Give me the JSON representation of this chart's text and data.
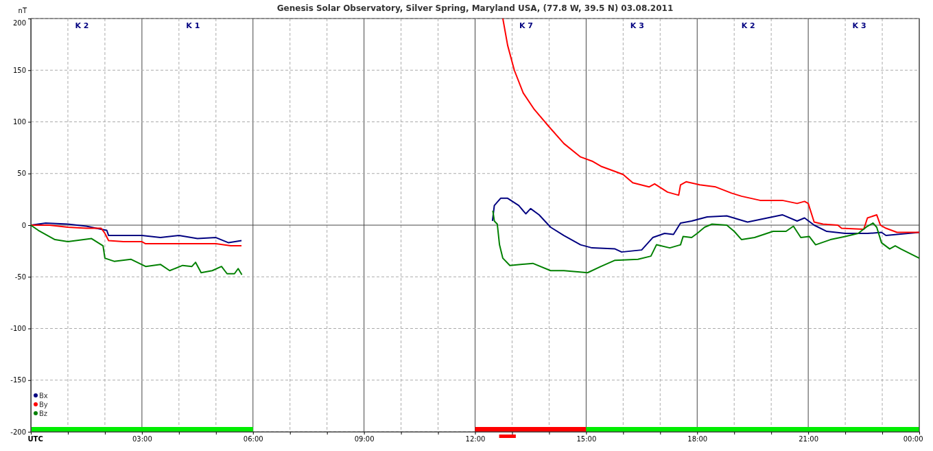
{
  "chart_data": {
    "type": "line",
    "title": "Genesis Solar Observatory, Silver Spring, Maryland USA, (77.8 W, 39.5 N)  03.08.2011",
    "ylabel": "nT",
    "xlim": [
      0,
      24
    ],
    "ylim": [
      -200,
      200
    ],
    "xticks": [
      {
        "value": 0,
        "label": "UTC"
      },
      {
        "value": 1,
        "label": null
      },
      {
        "value": 2,
        "label": null
      },
      {
        "value": 3,
        "label": "03:00"
      },
      {
        "value": 4,
        "label": null
      },
      {
        "value": 5,
        "label": null
      },
      {
        "value": 6,
        "label": "06:00"
      },
      {
        "value": 7,
        "label": null
      },
      {
        "value": 8,
        "label": null
      },
      {
        "value": 9,
        "label": "09:00"
      },
      {
        "value": 10,
        "label": null
      },
      {
        "value": 11,
        "label": null
      },
      {
        "value": 12,
        "label": "12:00"
      },
      {
        "value": 13,
        "label": null
      },
      {
        "value": 14,
        "label": null
      },
      {
        "value": 15,
        "label": "15:00"
      },
      {
        "value": 16,
        "label": null
      },
      {
        "value": 17,
        "label": null
      },
      {
        "value": 18,
        "label": "18:00"
      },
      {
        "value": 19,
        "label": null
      },
      {
        "value": 20,
        "label": null
      },
      {
        "value": 21,
        "label": "21:00"
      },
      {
        "value": 22,
        "label": null
      },
      {
        "value": 23,
        "label": null
      },
      {
        "value": 24,
        "label": "00:00"
      }
    ],
    "yticks": [
      -200,
      -150,
      -100,
      -50,
      0,
      50,
      100,
      150,
      200
    ],
    "grid": true,
    "legend": "bottom left",
    "series": [
      {
        "name": "Bx",
        "color": "#000080",
        "x": [
          0,
          0.4,
          1.0,
          1.5,
          1.9,
          2.05,
          2.1,
          2.5,
          3.0,
          3.5,
          4.0,
          4.5,
          5.0,
          5.34,
          5.69,
          6,
          12.47,
          12.52,
          12.69,
          12.88,
          13.18,
          13.37,
          13.5,
          13.73,
          14.04,
          14.4,
          14.85,
          15.16,
          15.78,
          15.96,
          16.5,
          16.8,
          17.12,
          17.36,
          17.55,
          17.85,
          18.27,
          18.8,
          19.36,
          20.3,
          20.7,
          20.9,
          21.16,
          21.5,
          22.0,
          22.6,
          22.98,
          23.1,
          24
        ],
        "values": [
          0,
          2,
          1,
          -1,
          -4,
          -5,
          -10,
          -10,
          -10,
          -12,
          -10,
          -13,
          -12,
          -17,
          -15,
          null,
          4,
          19,
          26,
          26,
          19,
          11,
          16,
          10,
          -2,
          -10,
          -19,
          -22,
          -23,
          -26,
          -24,
          -12,
          -8,
          -9,
          2,
          4,
          8,
          9,
          3,
          10,
          4,
          7,
          0,
          -6,
          -8,
          -8,
          -7,
          -10,
          -7
        ]
      },
      {
        "name": "By",
        "color": "#ff0000",
        "x": [
          0,
          0.5,
          1.0,
          1.5,
          1.9,
          2.0,
          2.1,
          2.5,
          3.0,
          3.1,
          4.0,
          5.0,
          5.4,
          5.69,
          6,
          12.75,
          12.88,
          13.06,
          13.3,
          13.6,
          13.98,
          14.4,
          14.85,
          15.16,
          15.4,
          15.78,
          16.0,
          16.26,
          16.7,
          16.85,
          17.2,
          17.5,
          17.55,
          17.7,
          18.07,
          18.5,
          18.93,
          19.2,
          19.7,
          20.3,
          20.7,
          20.9,
          21.0,
          21.16,
          21.4,
          21.8,
          21.9,
          22.5,
          22.6,
          22.85,
          22.95,
          23.1,
          23.4,
          24
        ],
        "values": [
          0,
          0,
          -2,
          -3,
          -3,
          -8,
          -15,
          -16,
          -16,
          -18,
          -18,
          -18,
          -20,
          -20,
          null,
          200,
          174,
          150,
          128,
          112,
          96,
          79,
          66,
          62,
          57,
          52,
          49,
          41,
          37,
          40,
          32,
          29,
          39,
          42,
          39,
          37,
          31,
          28,
          24,
          24,
          21,
          23,
          21,
          3,
          1,
          0,
          -3,
          -4,
          7,
          10,
          0,
          -3,
          -7,
          -7
        ]
      },
      {
        "name": "Bz",
        "color": "#008000",
        "x": [
          0,
          0.2,
          0.65,
          1.0,
          1.64,
          1.95,
          2.0,
          2.25,
          2.7,
          3.1,
          3.5,
          3.75,
          4.1,
          4.35,
          4.45,
          4.6,
          4.9,
          5.15,
          5.3,
          5.5,
          5.6,
          5.7,
          6,
          12.48,
          12.52,
          12.6,
          12.66,
          12.75,
          12.94,
          13.56,
          14.04,
          14.4,
          15.04,
          15.4,
          15.78,
          16.4,
          16.75,
          16.9,
          17.26,
          17.55,
          17.62,
          17.85,
          18.0,
          18.2,
          18.4,
          18.8,
          19.0,
          19.2,
          19.55,
          20.05,
          20.4,
          20.6,
          20.8,
          21.03,
          21.2,
          21.6,
          22.0,
          22.35,
          22.6,
          22.75,
          22.85,
          22.98,
          23.2,
          23.35,
          23.5,
          24
        ],
        "values": [
          0,
          -5,
          -14,
          -16,
          -13,
          -20,
          -32,
          -35,
          -33,
          -40,
          -38,
          -44,
          -39,
          -40,
          -36,
          -46,
          -44,
          -40,
          -47,
          -47,
          -42,
          -48,
          null,
          14,
          4,
          1,
          -19,
          -32,
          -39,
          -37,
          -44,
          -44,
          -46,
          -40,
          -34,
          -33,
          -30,
          -19,
          -22,
          -19,
          -11,
          -12,
          -8,
          -2,
          1,
          0,
          -6,
          -14,
          -12,
          -6,
          -6,
          -1,
          -12,
          -11,
          -19,
          -14,
          -11,
          -8,
          -1,
          2,
          -2,
          -17,
          -23,
          -20,
          -23,
          -32
        ]
      }
    ],
    "annotations": [
      "K 2",
      "K 1",
      "K 7",
      "K 3",
      "K 2",
      "K 3"
    ]
  }
}
